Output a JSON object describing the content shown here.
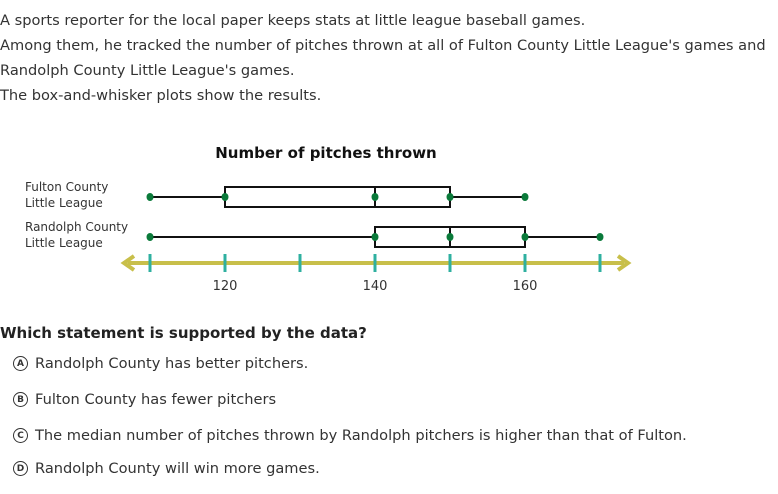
{
  "intro": [
    "A sports reporter for the local paper keeps stats at little league baseball games.",
    "Among them, he tracked the number of pitches thrown at all of Fulton County Little League's games and",
    "Randolph County Little League's games.",
    "The box-and-whisker plots show the results."
  ],
  "chart_data": {
    "type": "boxplot",
    "title": "Number of pitches thrown",
    "xlim": [
      110,
      170
    ],
    "ticks": [
      110,
      120,
      130,
      140,
      150,
      160,
      170
    ],
    "tick_labels": [
      {
        "value": 120,
        "label": "120"
      },
      {
        "value": 140,
        "label": "140"
      },
      {
        "value": 160,
        "label": "160"
      }
    ],
    "series": [
      {
        "name_lines": [
          "Fulton County",
          "Little League"
        ],
        "min": 110,
        "q1": 120,
        "median": 140,
        "q3": 150,
        "max": 160
      },
      {
        "name_lines": [
          "Randolph County",
          "Little League"
        ],
        "min": 110,
        "q1": 140,
        "median": 150,
        "q3": 160,
        "max": 170
      }
    ],
    "colors": {
      "axis": "#c8bf4a",
      "tick": "#2fb0a0",
      "point": "#0a7a3a",
      "box": "#111111"
    }
  },
  "question": "Which statement is supported by the data?",
  "options": [
    {
      "letter": "A",
      "text": "Randolph County has better pitchers."
    },
    {
      "letter": "B",
      "text": "Fulton County has fewer pitchers"
    },
    {
      "letter": "C",
      "text": "The median number of pitches thrown by Randolph pitchers is higher than that of Fulton."
    },
    {
      "letter": "D",
      "text": "Randolph County will win more games."
    }
  ]
}
